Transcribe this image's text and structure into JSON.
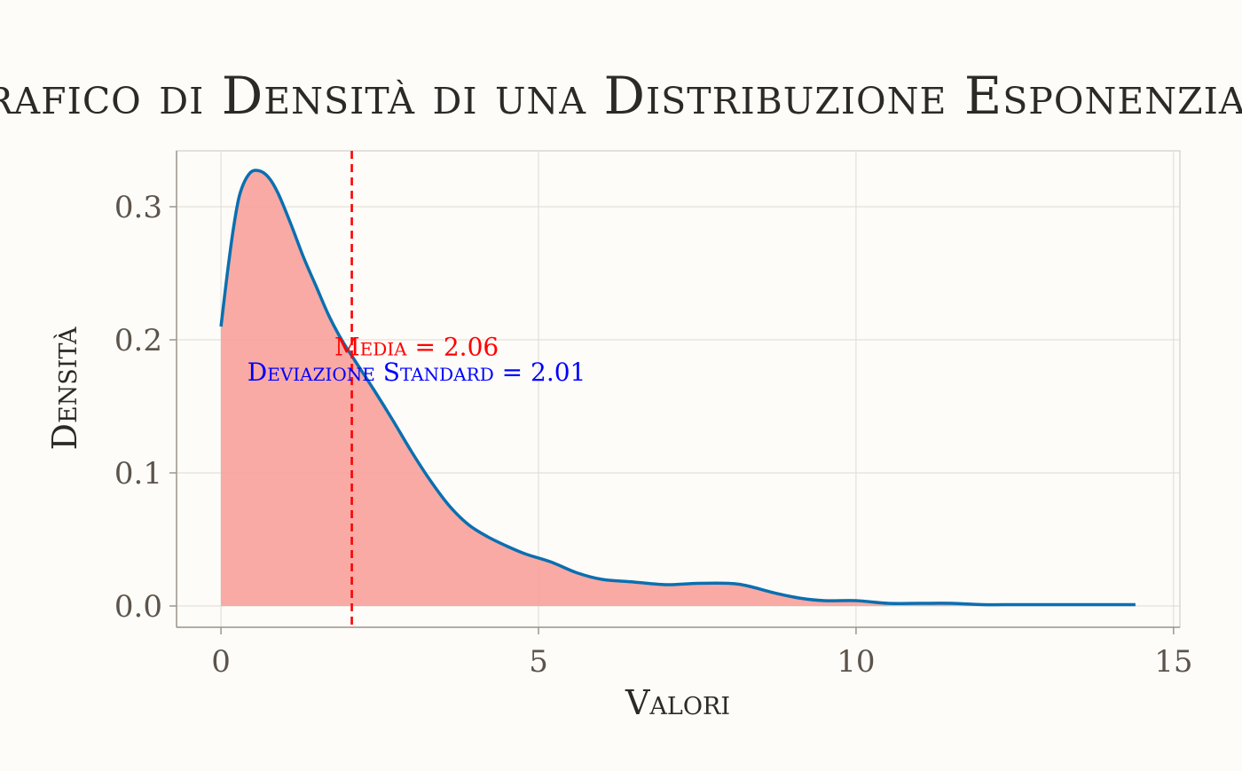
{
  "chart_data": {
    "type": "area",
    "title": "Grafico di Densità di una Distribuzione Esponenziale",
    "xlabel": "Valori",
    "ylabel": "Densità",
    "xlim": [
      -0.7,
      15.1
    ],
    "ylim": [
      -0.016,
      0.342
    ],
    "x_ticks": [
      0,
      5,
      10,
      15
    ],
    "x_tick_labels": [
      "0",
      "5",
      "10",
      "15"
    ],
    "y_ticks": [
      0.0,
      0.1,
      0.2,
      0.3
    ],
    "y_tick_labels": [
      "0.0",
      "0.1",
      "0.2",
      "0.3"
    ],
    "grid": true,
    "series": [
      {
        "name": "densità",
        "color": "#0a6fb0",
        "fill": "#f8a19a",
        "x": [
          0,
          0.1,
          0.2,
          0.3,
          0.45,
          0.6,
          0.75,
          0.9,
          1.1,
          1.3,
          1.5,
          1.7,
          1.9,
          2.1,
          2.4,
          2.7,
          3.0,
          3.3,
          3.6,
          3.9,
          4.2,
          4.5,
          4.8,
          5.2,
          5.6,
          6.0,
          6.5,
          7.0,
          7.5,
          8.0,
          8.3,
          8.7,
          9.1,
          9.5,
          10.0,
          10.5,
          11.0,
          11.5,
          12.0,
          12.5,
          13.0,
          13.5,
          14.0,
          14.4
        ],
        "y": [
          0.21,
          0.25,
          0.285,
          0.31,
          0.325,
          0.327,
          0.322,
          0.31,
          0.287,
          0.262,
          0.24,
          0.218,
          0.2,
          0.185,
          0.163,
          0.14,
          0.116,
          0.094,
          0.075,
          0.061,
          0.052,
          0.045,
          0.039,
          0.033,
          0.025,
          0.02,
          0.018,
          0.016,
          0.017,
          0.017,
          0.015,
          0.01,
          0.006,
          0.004,
          0.004,
          0.002,
          0.002,
          0.002,
          0.001,
          0.001,
          0.001,
          0.001,
          0.001,
          0.001
        ]
      }
    ],
    "mean": 2.06,
    "sd": 2.01,
    "mean_line": {
      "x": 2.06,
      "color": "#ff0000",
      "style": "dashed"
    },
    "annotations": [
      {
        "text": "Media = 2.06",
        "x": 3.08,
        "y": 0.195,
        "color": "#ff0000"
      },
      {
        "text": "Deviazione Standard = 2.01",
        "x": 3.08,
        "y": 0.176,
        "color": "#0000ff"
      }
    ]
  }
}
